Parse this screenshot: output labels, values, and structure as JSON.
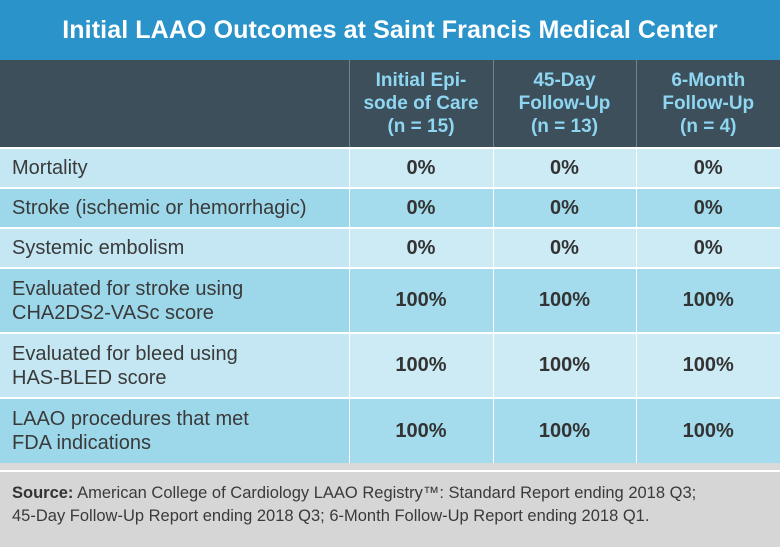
{
  "title": "Initial LAAO Outcomes at Saint Francis Medical Center",
  "columns": [
    {
      "line1": "Initial Epi-",
      "line2": "sode of Care",
      "line3": "(n = 15)"
    },
    {
      "line1": "45-Day",
      "line2": "Follow-Up",
      "line3": "(n = 13)"
    },
    {
      "line1": "6-Month",
      "line2": "Follow-Up",
      "line3": "(n = 4)"
    }
  ],
  "rows": [
    {
      "label1": "Mortality",
      "label2": "",
      "values": [
        "0%",
        "0%",
        "0%"
      ]
    },
    {
      "label1": "Stroke (ischemic or hemorrhagic)",
      "label2": "",
      "values": [
        "0%",
        "0%",
        "0%"
      ]
    },
    {
      "label1": "Systemic embolism",
      "label2": "",
      "values": [
        "0%",
        "0%",
        "0%"
      ]
    },
    {
      "label1": "Evaluated for stroke using",
      "label2": "CHA2DS2-VASc score",
      "values": [
        "100%",
        "100%",
        "100%"
      ]
    },
    {
      "label1": "Evaluated for bleed using",
      "label2": "HAS-BLED score",
      "values": [
        "100%",
        "100%",
        "100%"
      ]
    },
    {
      "label1": "LAAO procedures that met",
      "label2": "FDA indications",
      "values": [
        "100%",
        "100%",
        "100%"
      ]
    }
  ],
  "source": {
    "label": "Source:",
    "line1": "American College of Cardiology LAAO Registry™: Standard Report ending 2018 Q3;",
    "line2": "45-Day Follow-Up Report ending 2018 Q3; 6-Month Follow-Up Report ending 2018 Q1."
  }
}
